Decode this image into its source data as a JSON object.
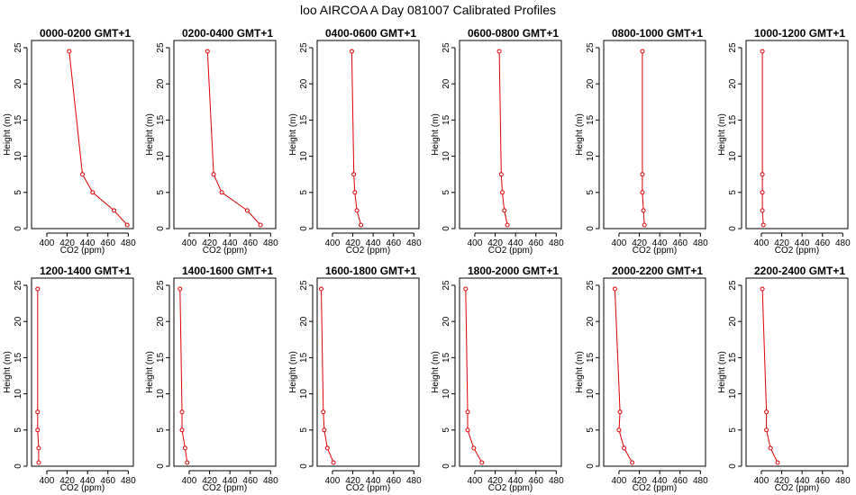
{
  "title": "loo AIRCOA A  Day 081007  Calibrated Profiles",
  "colors": {
    "series": "#dd0000",
    "axis": "#000000",
    "background": "#ffffff"
  },
  "chart_data": [
    {
      "type": "line",
      "title": "0000-0200 GMT+1",
      "xlabel": "CO2 (ppm)",
      "ylabel": "Height (m)",
      "xlim": [
        385,
        485
      ],
      "ylim": [
        0,
        25
      ],
      "xticks": [
        400,
        420,
        440,
        460,
        480
      ],
      "yticks": [
        0,
        5,
        10,
        15,
        20,
        25
      ],
      "x": [
        479,
        466,
        445,
        435,
        422
      ],
      "y": [
        0.5,
        2.5,
        5,
        7.5,
        24.5
      ]
    },
    {
      "type": "line",
      "title": "0200-0400 GMT+1",
      "xlabel": "CO2 (ppm)",
      "ylabel": "Height (m)",
      "xlim": [
        385,
        485
      ],
      "ylim": [
        0,
        25
      ],
      "xticks": [
        400,
        420,
        440,
        460,
        480
      ],
      "yticks": [
        0,
        5,
        10,
        15,
        20,
        25
      ],
      "x": [
        470,
        457,
        432,
        424,
        418
      ],
      "y": [
        0.5,
        2.5,
        5,
        7.5,
        24.5
      ]
    },
    {
      "type": "line",
      "title": "0400-0600 GMT+1",
      "xlabel": "CO2 (ppm)",
      "ylabel": "Height (m)",
      "xlim": [
        385,
        485
      ],
      "ylim": [
        0,
        25
      ],
      "xticks": [
        400,
        420,
        440,
        460,
        480
      ],
      "yticks": [
        0,
        5,
        10,
        15,
        20,
        25
      ],
      "x": [
        428,
        424,
        422,
        421,
        419
      ],
      "y": [
        0.5,
        2.5,
        5,
        7.5,
        24.5
      ]
    },
    {
      "type": "line",
      "title": "0600-0800 GMT+1",
      "xlabel": "CO2 (ppm)",
      "ylabel": "Height (m)",
      "xlim": [
        385,
        485
      ],
      "ylim": [
        0,
        25
      ],
      "xticks": [
        400,
        420,
        440,
        460,
        480
      ],
      "yticks": [
        0,
        5,
        10,
        15,
        20,
        25
      ],
      "x": [
        432,
        429,
        427,
        426,
        424
      ],
      "y": [
        0.5,
        2.5,
        5,
        7.5,
        24.5
      ]
    },
    {
      "type": "line",
      "title": "0800-1000 GMT+1",
      "xlabel": "CO2 (ppm)",
      "ylabel": "Height (m)",
      "xlim": [
        385,
        485
      ],
      "ylim": [
        0,
        25
      ],
      "xticks": [
        400,
        420,
        440,
        460,
        480
      ],
      "yticks": [
        0,
        5,
        10,
        15,
        20,
        25
      ],
      "x": [
        425,
        424,
        423,
        423,
        423
      ],
      "y": [
        0.5,
        2.5,
        5,
        7.5,
        24.5
      ]
    },
    {
      "type": "line",
      "title": "1000-1200 GMT+1",
      "xlabel": "CO2 (ppm)",
      "ylabel": "Height (m)",
      "xlim": [
        385,
        485
      ],
      "ylim": [
        0,
        25
      ],
      "xticks": [
        400,
        420,
        440,
        460,
        480
      ],
      "yticks": [
        0,
        5,
        10,
        15,
        20,
        25
      ],
      "x": [
        402,
        401,
        401,
        401,
        401
      ],
      "y": [
        0.5,
        2.5,
        5,
        7.5,
        24.5
      ]
    },
    {
      "type": "line",
      "title": "1200-1400 GMT+1",
      "xlabel": "CO2 (ppm)",
      "ylabel": "Height (m)",
      "xlim": [
        385,
        485
      ],
      "ylim": [
        0,
        25
      ],
      "xticks": [
        400,
        420,
        440,
        460,
        480
      ],
      "yticks": [
        0,
        5,
        10,
        15,
        20,
        25
      ],
      "x": [
        392,
        392,
        391,
        391,
        391
      ],
      "y": [
        0.5,
        2.5,
        5,
        7.5,
        24.5
      ]
    },
    {
      "type": "line",
      "title": "1400-1600 GMT+1",
      "xlabel": "CO2 (ppm)",
      "ylabel": "Height (m)",
      "xlim": [
        385,
        485
      ],
      "ylim": [
        0,
        25
      ],
      "xticks": [
        400,
        420,
        440,
        460,
        480
      ],
      "yticks": [
        0,
        5,
        10,
        15,
        20,
        25
      ],
      "x": [
        398,
        396,
        393,
        393,
        391
      ],
      "y": [
        0.5,
        2.5,
        5,
        7.5,
        24.5
      ]
    },
    {
      "type": "line",
      "title": "1600-1800 GMT+1",
      "xlabel": "CO2 (ppm)",
      "ylabel": "Height (m)",
      "xlim": [
        385,
        485
      ],
      "ylim": [
        0,
        25
      ],
      "xticks": [
        400,
        420,
        440,
        460,
        480
      ],
      "yticks": [
        0,
        5,
        10,
        15,
        20,
        25
      ],
      "x": [
        401,
        395,
        392,
        391,
        389
      ],
      "y": [
        0.5,
        2.5,
        5,
        7.5,
        24.5
      ]
    },
    {
      "type": "line",
      "title": "1800-2000 GMT+1",
      "xlabel": "CO2 (ppm)",
      "ylabel": "Height (m)",
      "xlim": [
        385,
        485
      ],
      "ylim": [
        0,
        25
      ],
      "xticks": [
        400,
        420,
        440,
        460,
        480
      ],
      "yticks": [
        0,
        5,
        10,
        15,
        20,
        25
      ],
      "x": [
        407,
        399,
        393,
        393,
        391
      ],
      "y": [
        0.5,
        2.5,
        5,
        7.5,
        24.5
      ]
    },
    {
      "type": "line",
      "title": "2000-2200 GMT+1",
      "xlabel": "CO2 (ppm)",
      "ylabel": "Height (m)",
      "xlim": [
        385,
        485
      ],
      "ylim": [
        0,
        25
      ],
      "xticks": [
        400,
        420,
        440,
        460,
        480
      ],
      "yticks": [
        0,
        5,
        10,
        15,
        20,
        25
      ],
      "x": [
        413,
        405,
        400,
        401,
        396
      ],
      "y": [
        0.5,
        2.5,
        5,
        7.5,
        24.5
      ]
    },
    {
      "type": "line",
      "title": "2200-2400 GMT+1",
      "xlabel": "CO2 (ppm)",
      "ylabel": "Height (m)",
      "xlim": [
        385,
        485
      ],
      "ylim": [
        0,
        25
      ],
      "xticks": [
        400,
        420,
        440,
        460,
        480
      ],
      "yticks": [
        0,
        5,
        10,
        15,
        20,
        25
      ],
      "x": [
        416,
        409,
        405,
        405,
        401
      ],
      "y": [
        0.5,
        2.5,
        5,
        7.5,
        24.5
      ]
    }
  ]
}
